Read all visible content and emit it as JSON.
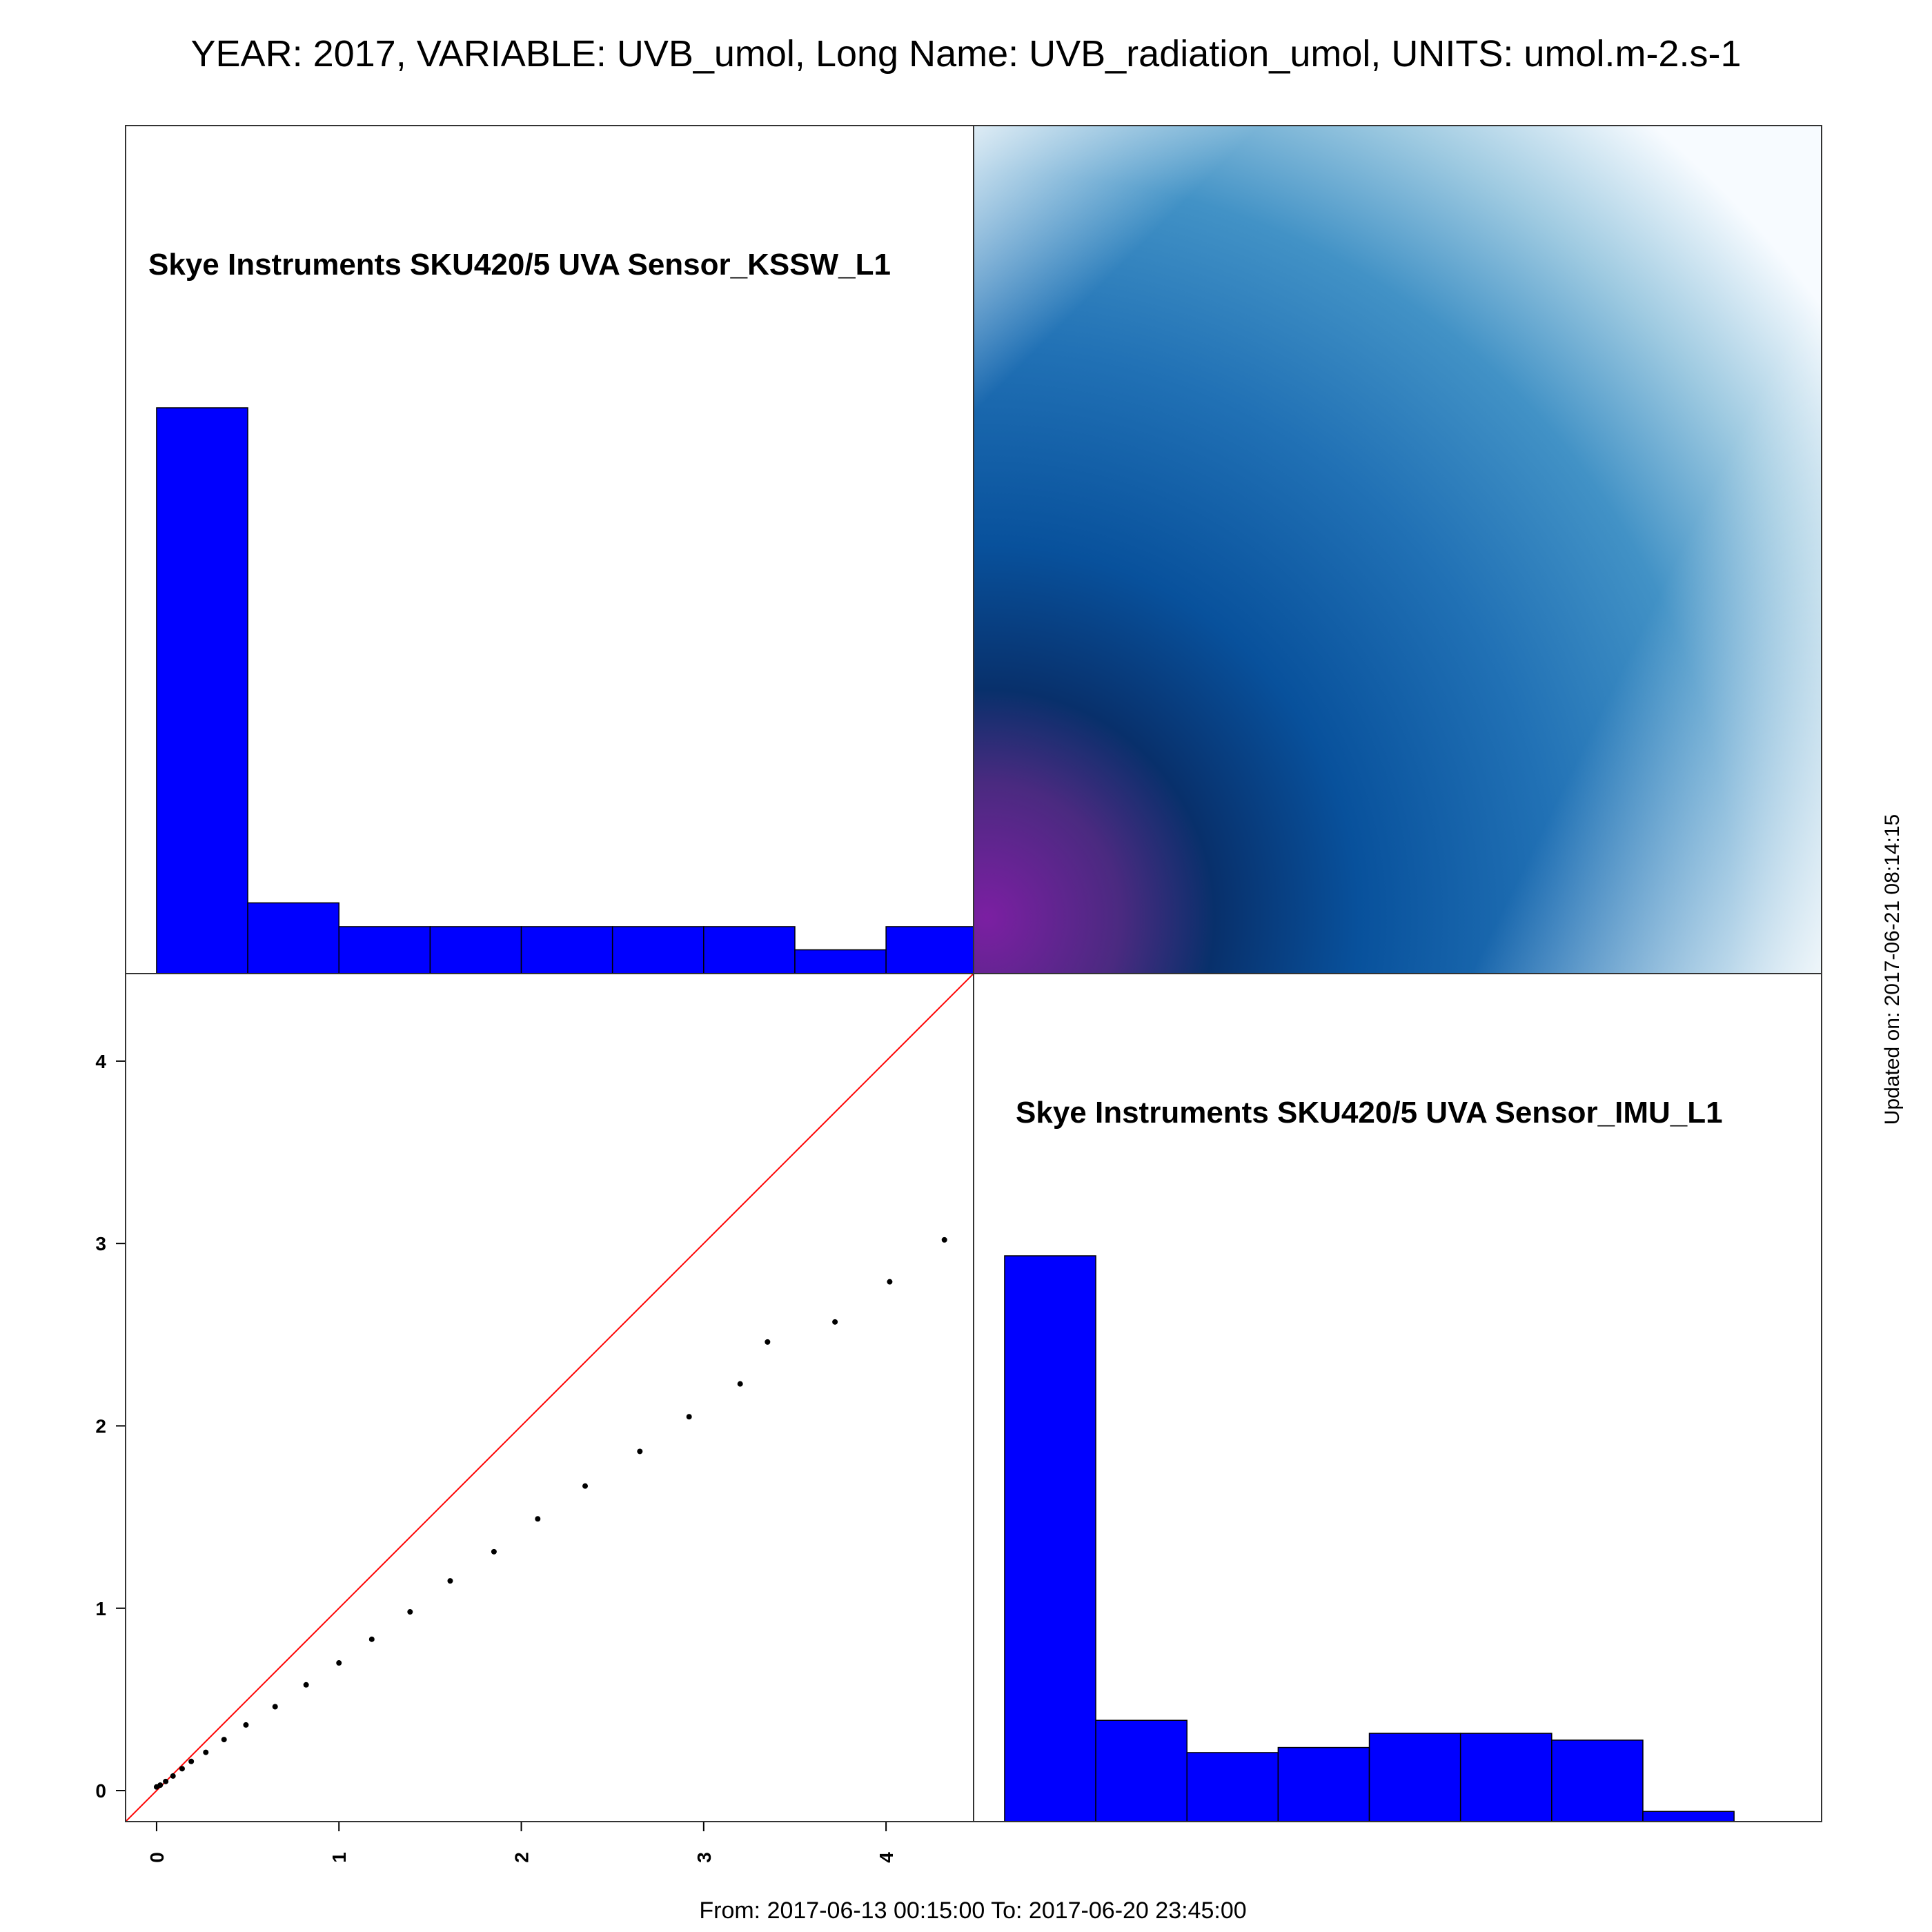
{
  "header": {
    "title": "YEAR: 2017, VARIABLE: UVB_umol, Long Name: UVB_radiation_umol, UNITS: umol.m-2.s-1"
  },
  "footer": {
    "range": "From: 2017-06-13 00:15:00 To: 2017-06-20 23:45:00",
    "updated": "Updated on: 2017-06-21 08:14:15"
  },
  "colors": {
    "bar": "#0000ff",
    "ref_line": "#ff0000",
    "points": "#000000"
  },
  "chart_data": [
    {
      "type": "bar",
      "panel": "top-left histogram",
      "title": "Skye Instruments SKU420/5 UVA Sensor_KSSW_L1",
      "bin_edges": [
        0,
        0.5,
        1.0,
        1.5,
        2.0,
        2.5,
        3.0,
        3.5,
        4.0,
        4.5
      ],
      "values": [
        1.0,
        0.125,
        0.083,
        0.083,
        0.083,
        0.083,
        0.083,
        0.042,
        0.083
      ]
    },
    {
      "type": "heatmap",
      "panel": "top-right density",
      "colors": [
        "#7b1fa2",
        "#08306b",
        "#08519c",
        "#2171b5",
        "#4292c6",
        "#9ecae1",
        "#f7fbff"
      ]
    },
    {
      "type": "scatter",
      "panel": "bottom-left quantile plot",
      "xlim": [
        -0.17,
        4.48
      ],
      "ylim": [
        -0.17,
        4.48
      ],
      "xticks": [
        "0",
        "1",
        "2",
        "3",
        "4"
      ],
      "yticks": [
        "0",
        "1",
        "2",
        "3",
        "4"
      ],
      "reference_line": "y = x",
      "points": [
        [
          0.0,
          0.02
        ],
        [
          0.02,
          0.03
        ],
        [
          0.05,
          0.05
        ],
        [
          0.09,
          0.08
        ],
        [
          0.14,
          0.12
        ],
        [
          0.19,
          0.16
        ],
        [
          0.27,
          0.21
        ],
        [
          0.37,
          0.28
        ],
        [
          0.49,
          0.36
        ],
        [
          0.65,
          0.46
        ],
        [
          0.82,
          0.58
        ],
        [
          1.0,
          0.7
        ],
        [
          1.18,
          0.83
        ],
        [
          1.39,
          0.98
        ],
        [
          1.61,
          1.15
        ],
        [
          1.85,
          1.31
        ],
        [
          2.09,
          1.49
        ],
        [
          2.35,
          1.67
        ],
        [
          2.65,
          1.86
        ],
        [
          2.92,
          2.05
        ],
        [
          3.2,
          2.23
        ],
        [
          3.35,
          2.46
        ],
        [
          3.72,
          2.57
        ],
        [
          4.02,
          2.79
        ],
        [
          4.32,
          3.02
        ]
      ]
    },
    {
      "type": "bar",
      "panel": "bottom-right histogram",
      "title": "Skye Instruments SKU420/5 UVA Sensor_IMU_L1",
      "bin_edges": [
        0,
        0.5,
        1.0,
        1.5,
        2.0,
        2.5,
        3.0,
        3.5,
        4.0
      ],
      "values": [
        1.0,
        0.179,
        0.122,
        0.131,
        0.156,
        0.156,
        0.144,
        0.018
      ]
    }
  ]
}
